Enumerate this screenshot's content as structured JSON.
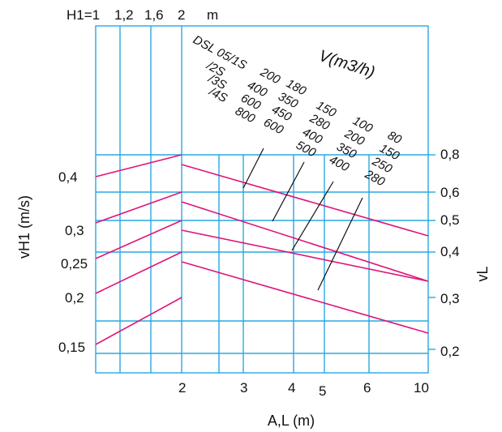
{
  "chart_data": {
    "type": "line",
    "colors": {
      "grid": "#29a8e0",
      "curves": "#e0147a",
      "leaders": "#111111",
      "text": "#111111"
    },
    "top_axis": {
      "ticks": [
        "H1=1",
        "1,2",
        "1,6",
        "2"
      ],
      "unit": "m"
    },
    "x_axis": {
      "label": "A,L (m)",
      "scale": "log",
      "range": [
        1,
        10
      ],
      "ticks": [
        2,
        3,
        4,
        5,
        6,
        10
      ]
    },
    "left_axis": {
      "label": "vH1 (m/s)",
      "ticks": [
        "0,4",
        "0,3",
        "0,25",
        "0,2",
        "0,15"
      ]
    },
    "right_axis": {
      "label": "vL",
      "ticks": [
        "0,8",
        "0,6",
        "0,5",
        "0,4",
        "0,3",
        "0,2"
      ]
    },
    "volume_label": "V(m3/h)",
    "models": [
      "DSL 05/1S",
      "/2S",
      "/3S",
      "/4S"
    ],
    "flow_columns": [
      [
        "200",
        "400",
        "600",
        "800"
      ],
      [
        "180",
        "350",
        "450",
        "600"
      ],
      [
        "150",
        "280",
        "400",
        "500"
      ],
      [
        "100",
        "200",
        "350",
        "400"
      ],
      [
        "80",
        "150",
        "250",
        "280"
      ]
    ],
    "series": [
      {
        "rise_from_vH1": 0.4,
        "peak_vL": 0.8,
        "fall_to_vL_at_10": 0.4
      },
      {
        "rise_from_vH1": 0.3,
        "peak_vL": 0.6,
        "fall_to_vL_at_10": 0.3
      },
      {
        "rise_from_vH1": 0.25,
        "peak_vL": 0.5,
        "fall_to_vL_at_10": 0.3
      },
      {
        "rise_from_vH1": 0.2,
        "peak_vL": 0.4,
        "fall_to_vL_at_10": 0.2
      },
      {
        "rise_from_vH1": 0.15,
        "peak_vL": 0.3,
        "fall_to_vL_at_10": null
      }
    ]
  }
}
